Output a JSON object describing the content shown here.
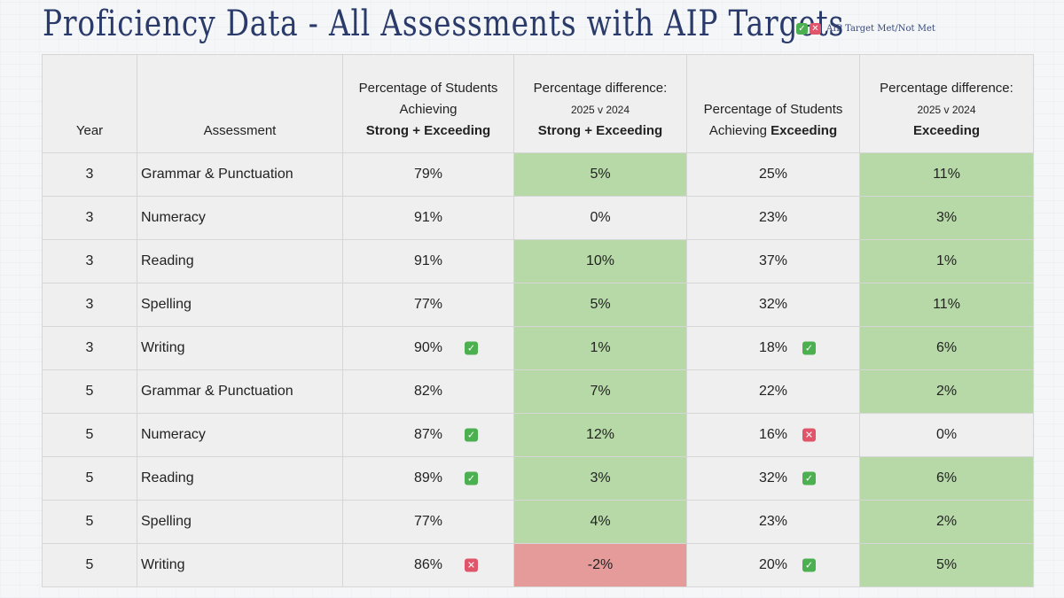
{
  "title": "Proficiency Data - All Assessments with AIP Targets",
  "legend": {
    "label": "AIP Target Met/Not Met",
    "met_icon": "check-icon",
    "not_met_icon": "cross-icon"
  },
  "colors": {
    "green": "#b7d9a8",
    "red": "#e69b9b",
    "check": "#4caf50",
    "cross": "#e0556a",
    "title": "#2a3a6a"
  },
  "header": {
    "year": "Year",
    "assessment": "Assessment",
    "se_line1": "Percentage of Students",
    "se_line2": "Achieving",
    "se_bold": "Strong + Exceeding",
    "sediff_line1": "Percentage difference:",
    "sediff_line2": "2025 v 2024",
    "sediff_bold": "Strong + Exceeding",
    "ex_line1": "Percentage of Students",
    "ex_line2": "Achieving",
    "ex_bold": "Exceeding",
    "exdiff_line1": "Percentage difference:",
    "exdiff_line2": "2025 v 2024",
    "exdiff_bold": "Exceeding"
  },
  "rows": [
    {
      "year": "3",
      "assessment": "Grammar & Punctuation",
      "se": "79%",
      "se_mark": "",
      "se_diff": "5%",
      "se_diff_color": "green",
      "ex": "25%",
      "ex_mark": "",
      "ex_diff": "11%",
      "ex_diff_color": "green"
    },
    {
      "year": "3",
      "assessment": "Numeracy",
      "se": "91%",
      "se_mark": "",
      "se_diff": "0%",
      "se_diff_color": "",
      "ex": "23%",
      "ex_mark": "",
      "ex_diff": "3%",
      "ex_diff_color": "green"
    },
    {
      "year": "3",
      "assessment": "Reading",
      "se": "91%",
      "se_mark": "",
      "se_diff": "10%",
      "se_diff_color": "green",
      "ex": "37%",
      "ex_mark": "",
      "ex_diff": "1%",
      "ex_diff_color": "green"
    },
    {
      "year": "3",
      "assessment": "Spelling",
      "se": "77%",
      "se_mark": "",
      "se_diff": "5%",
      "se_diff_color": "green",
      "ex": "32%",
      "ex_mark": "",
      "ex_diff": "11%",
      "ex_diff_color": "green"
    },
    {
      "year": "3",
      "assessment": "Writing",
      "se": "90%",
      "se_mark": "met",
      "se_diff": "1%",
      "se_diff_color": "green",
      "ex": "18%",
      "ex_mark": "met",
      "ex_diff": "6%",
      "ex_diff_color": "green"
    },
    {
      "year": "5",
      "assessment": "Grammar & Punctuation",
      "se": "82%",
      "se_mark": "",
      "se_diff": "7%",
      "se_diff_color": "green",
      "ex": "22%",
      "ex_mark": "",
      "ex_diff": "2%",
      "ex_diff_color": "green"
    },
    {
      "year": "5",
      "assessment": "Numeracy",
      "se": "87%",
      "se_mark": "met",
      "se_diff": "12%",
      "se_diff_color": "green",
      "ex": "16%",
      "ex_mark": "notmet",
      "ex_diff": "0%",
      "ex_diff_color": ""
    },
    {
      "year": "5",
      "assessment": "Reading",
      "se": "89%",
      "se_mark": "met",
      "se_diff": "3%",
      "se_diff_color": "green",
      "ex": "32%",
      "ex_mark": "met",
      "ex_diff": "6%",
      "ex_diff_color": "green"
    },
    {
      "year": "5",
      "assessment": "Spelling",
      "se": "77%",
      "se_mark": "",
      "se_diff": "4%",
      "se_diff_color": "green",
      "ex": "23%",
      "ex_mark": "",
      "ex_diff": "2%",
      "ex_diff_color": "green"
    },
    {
      "year": "5",
      "assessment": "Writing",
      "se": "86%",
      "se_mark": "notmet",
      "se_diff": "-2%",
      "se_diff_color": "red",
      "ex": "20%",
      "ex_mark": "met",
      "ex_diff": "5%",
      "ex_diff_color": "green"
    }
  ]
}
